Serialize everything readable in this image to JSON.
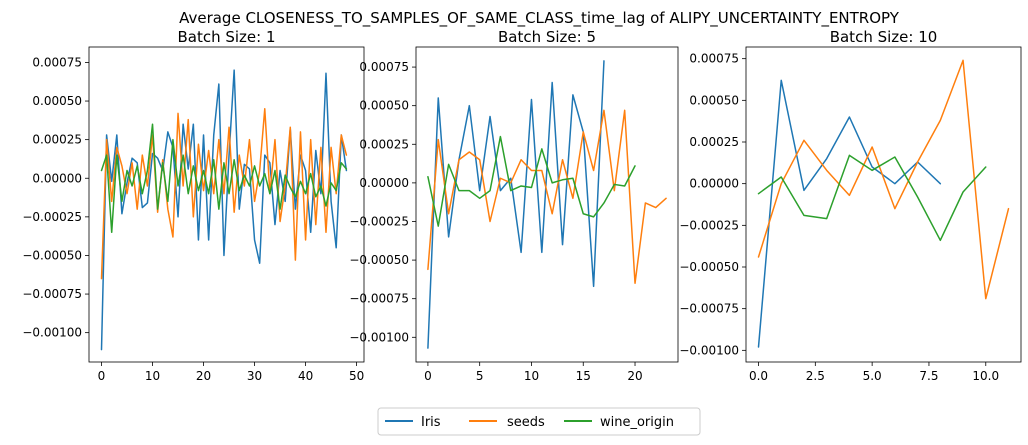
{
  "figure": {
    "title": "Average CLOSENESS_TO_SAMPLES_OF_SAME_CLASS_time_lag of ALIPY_UNCERTAINTY_ENTROPY"
  },
  "legend": {
    "placement": "bottom-center",
    "entries": [
      {
        "name": "Iris",
        "color": "#1f77b4"
      },
      {
        "name": "seeds",
        "color": "#ff7f0e"
      },
      {
        "name": "wine_origin",
        "color": "#2ca02c"
      }
    ]
  },
  "chart_data": [
    {
      "type": "line",
      "title": "Batch Size: 1",
      "xlim": [
        -2.45,
        51.45
      ],
      "ylim": [
        -0.00119,
        0.00085
      ],
      "xticks": [
        0,
        10,
        20,
        30,
        40,
        50
      ],
      "xtick_labels": [
        "0",
        "10",
        "20",
        "30",
        "40",
        "50"
      ],
      "yticks": [
        -0.001,
        -0.00075,
        -0.0005,
        -0.00025,
        0,
        0.00025,
        0.0005,
        0.00075
      ],
      "ytick_labels": [
        "−0.00100",
        "−0.00075",
        "−0.00050",
        "−0.00025",
        "0.00000",
        "0.00025",
        "0.00050",
        "0.00075"
      ],
      "grid": false,
      "series": [
        {
          "name": "Iris",
          "color": "#1f77b4",
          "x": [
            0,
            1,
            2,
            3,
            4,
            5,
            6,
            7,
            8,
            9,
            10,
            11,
            12,
            13,
            14,
            15,
            16,
            17,
            18,
            19,
            20,
            21,
            22,
            23,
            24,
            25,
            26,
            27,
            28,
            29,
            30,
            31,
            32,
            33,
            34,
            35,
            36,
            37,
            38,
            39,
            40,
            41,
            42,
            43,
            44,
            45,
            46,
            47,
            48
          ],
          "y": [
            -0.00111,
            0.00028,
            -2e-05,
            0.00028,
            -0.00023,
            -3e-05,
            0.00013,
            0.0001,
            -0.00019,
            -0.00016,
            0.00016,
            0.00013,
            5e-05,
            0.0003,
            0.0002,
            -0.00025,
            0.00035,
            6e-05,
            0.00035,
            -0.0004,
            0.00028,
            -0.0004,
            0.00028,
            0.00061,
            -0.0005,
            0.00015,
            0.0007,
            -0.0002,
            9e-05,
            6e-05,
            -0.0004,
            -0.00055,
            0.00015,
            0.0001,
            -0.0003,
            5e-05,
            -0.00015,
            0.00032,
            -0.0002,
            0.00015,
            5e-05,
            -0.00035,
            0.00018,
            -0.0001,
            0.00068,
            -0.00015,
            -0.00045,
            0.00028,
            5e-05
          ]
        },
        {
          "name": "seeds",
          "color": "#ff7f0e",
          "x": [
            0,
            1,
            2,
            3,
            4,
            5,
            6,
            7,
            8,
            9,
            10,
            11,
            12,
            13,
            14,
            15,
            16,
            17,
            18,
            19,
            20,
            21,
            22,
            23,
            24,
            25,
            26,
            27,
            28,
            29,
            30,
            31,
            32,
            33,
            34,
            35,
            36,
            37,
            38,
            39,
            40,
            41,
            42,
            43,
            44,
            45,
            46,
            47,
            48
          ],
          "y": [
            -0.00065,
            0.00025,
            -0.00015,
            0.0002,
            8e-05,
            -0.0001,
            0.0001,
            -0.0002,
            0.00015,
            -5e-05,
            0.00028,
            -0.00022,
            0.00012,
            -0.0002,
            -0.00038,
            0.00042,
            -5e-05,
            0.00038,
            -0.00025,
            0.00022,
            -8e-05,
            0.00018,
            -0.0001,
            0.00025,
            -0.0001,
            0.00033,
            -0.00022,
            0.00015,
            -5e-05,
            0.00025,
            -0.00015,
            5e-05,
            0.00045,
            -0.0001,
            0.00025,
            -0.00028,
            -5e-05,
            0.00033,
            -0.00053,
            0.0003,
            -0.0004,
            0.00025,
            -0.0003,
            0.0002,
            -0.00035,
            0.0002,
            -0.0001,
            0.00028,
            0.00015
          ]
        },
        {
          "name": "wine_origin",
          "color": "#2ca02c",
          "x": [
            0,
            1,
            2,
            3,
            4,
            5,
            6,
            7,
            8,
            9,
            10,
            11,
            12,
            13,
            14,
            15,
            16,
            17,
            18,
            19,
            20,
            21,
            22,
            23,
            24,
            25,
            26,
            27,
            28,
            29,
            30,
            31,
            32,
            33,
            34,
            35,
            36,
            37,
            38,
            39,
            40,
            41,
            42,
            43,
            44,
            45,
            46,
            47,
            48
          ],
          "y": [
            5e-05,
            0.00015,
            -0.00035,
            0.00015,
            -0.00015,
            5e-05,
            -5e-05,
            8e-05,
            -0.0001,
            5e-05,
            0.00035,
            -0.0002,
            0.0001,
            -0.00015,
            0.00025,
            -5e-05,
            0.00015,
            -0.0001,
            8e-05,
            -8e-05,
            5e-05,
            -0.0001,
            0.00012,
            -0.0002,
            0.0001,
            -0.0001,
            0.00012,
            -8e-05,
            2e-05,
            -5e-05,
            8e-05,
            -5e-05,
            3e-05,
            -0.0001,
            5e-05,
            -0.0002,
            2e-05,
            -6e-05,
            -0.00012,
            -2e-05,
            -0.0001,
            3e-05,
            -0.00012,
            -5e-05,
            -0.00018,
            -3e-05,
            -8e-05,
            0.0001,
            6e-05
          ]
        }
      ]
    },
    {
      "type": "line",
      "title": "Batch Size: 5",
      "xlim": [
        -1.15,
        24.15
      ],
      "ylim": [
        -0.00116,
        0.00088
      ],
      "xticks": [
        0,
        5,
        10,
        15,
        20
      ],
      "xtick_labels": [
        "0",
        "5",
        "10",
        "15",
        "20"
      ],
      "yticks": [
        -0.001,
        -0.00075,
        -0.0005,
        -0.00025,
        0,
        0.00025,
        0.0005,
        0.00075
      ],
      "ytick_labels": [
        "−0.00100",
        "−0.00075",
        "−0.00050",
        "−0.00025",
        "0.00000",
        "0.00025",
        "0.00050",
        "0.00075"
      ],
      "grid": false,
      "series": [
        {
          "name": "Iris",
          "color": "#1f77b4",
          "x": [
            0,
            1,
            2,
            3,
            4,
            5,
            6,
            7,
            8,
            9,
            10,
            11,
            12,
            13,
            14,
            15,
            16,
            17
          ],
          "y": [
            -0.00107,
            0.00055,
            -0.00035,
            0.00015,
            0.0005,
            -5e-05,
            0.00043,
            -5e-05,
            3e-05,
            -0.00045,
            0.00054,
            -0.00045,
            0.00065,
            -0.0004,
            0.00057,
            0.00033,
            -0.00067,
            0.00079
          ]
        },
        {
          "name": "seeds",
          "color": "#ff7f0e",
          "x": [
            0,
            1,
            2,
            3,
            4,
            5,
            6,
            7,
            8,
            9,
            10,
            11,
            12,
            13,
            14,
            15,
            16,
            17,
            18,
            19,
            20,
            21,
            22,
            23
          ],
          "y": [
            -0.00056,
            0.00028,
            -0.0002,
            0.00015,
            0.0002,
            0.00015,
            -0.00025,
            3e-05,
            0.0,
            0.00015,
            8e-05,
            8e-05,
            -0.0002,
            0.00015,
            -0.0001,
            0.00033,
            8e-05,
            0.00047,
            -5e-05,
            0.00047,
            -0.00065,
            -0.00013,
            -0.00016,
            -0.0001
          ]
        },
        {
          "name": "wine_origin",
          "color": "#2ca02c",
          "x": [
            0,
            1,
            2,
            3,
            4,
            5,
            6,
            7,
            8,
            9,
            10,
            11,
            12,
            13,
            14,
            15,
            16,
            17,
            18,
            19,
            20
          ],
          "y": [
            4e-05,
            -0.00028,
            0.00012,
            -5e-05,
            -5e-05,
            -0.0001,
            -5e-05,
            0.0003,
            -5e-05,
            -2e-05,
            -3e-05,
            0.00022,
            0.0,
            2e-05,
            3e-05,
            -0.0002,
            -0.00022,
            -0.00013,
            -1e-05,
            -2e-05,
            0.00011
          ]
        }
      ]
    },
    {
      "type": "line",
      "title": "Batch Size: 10",
      "xlim": [
        -0.55,
        11.55
      ],
      "ylim": [
        -0.00107,
        0.00082
      ],
      "xticks": [
        0,
        2.5,
        5,
        7.5,
        10
      ],
      "xtick_labels": [
        "0.0",
        "2.5",
        "5.0",
        "7.5",
        "10.0"
      ],
      "yticks": [
        -0.001,
        -0.00075,
        -0.0005,
        -0.00025,
        0,
        0.00025,
        0.0005,
        0.00075
      ],
      "ytick_labels": [
        "−0.00100",
        "−0.00075",
        "−0.00050",
        "−0.00025",
        "0.00000",
        "0.00025",
        "0.00050",
        "0.00075"
      ],
      "grid": false,
      "series": [
        {
          "name": "Iris",
          "color": "#1f77b4",
          "x": [
            0,
            1,
            2,
            3,
            4,
            5,
            6,
            7,
            8
          ],
          "y": [
            -0.00098,
            0.00062,
            -4e-05,
            0.00015,
            0.0004,
            0.0001,
            0.0,
            0.00013,
            0.0
          ]
        },
        {
          "name": "seeds",
          "color": "#ff7f0e",
          "x": [
            0,
            1,
            2,
            3,
            4,
            5,
            6,
            7,
            8,
            9,
            10,
            11
          ],
          "y": [
            -0.00044,
            0.0,
            0.00026,
            8e-05,
            -7e-05,
            0.00022,
            -0.00015,
            0.00013,
            0.00038,
            0.00074,
            -0.00069,
            -0.00015
          ]
        },
        {
          "name": "wine_origin",
          "color": "#2ca02c",
          "x": [
            0,
            1,
            2,
            3,
            4,
            5,
            6,
            7,
            8,
            9,
            10
          ],
          "y": [
            -6e-05,
            4e-05,
            -0.00019,
            -0.00021,
            0.00017,
            8e-05,
            0.00016,
            -8e-05,
            -0.00034,
            -5e-05,
            0.0001
          ]
        }
      ]
    }
  ]
}
